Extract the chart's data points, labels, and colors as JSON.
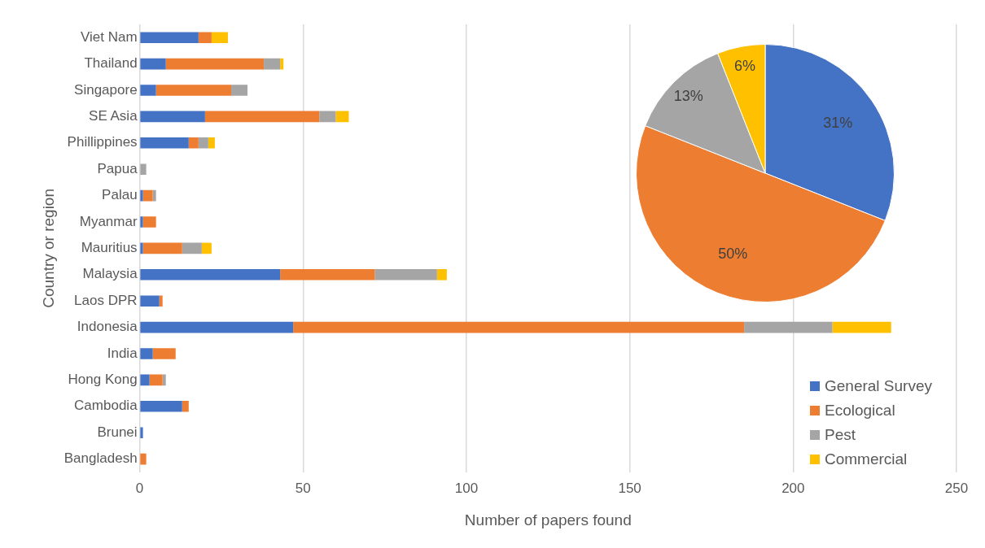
{
  "chart_data": [
    {
      "type": "bar",
      "orientation": "horizontal",
      "stacked": true,
      "xlabel": "Number of papers found",
      "ylabel": "Country or region",
      "categories": [
        "Viet Nam",
        "Thailand",
        "Singapore",
        "SE Asia",
        "Phillippines",
        "Papua",
        "Palau",
        "Myanmar",
        "Mauritius",
        "Malaysia",
        "Laos DPR",
        "Indonesia",
        "India",
        "Hong Kong",
        "Cambodia",
        "Brunei",
        "Bangladesh"
      ],
      "series": [
        {
          "color": "#4472c4",
          "values": [
            18,
            8,
            5,
            20,
            15,
            0,
            1,
            1,
            1,
            43,
            6,
            47,
            4,
            3,
            13,
            1,
            0
          ]
        },
        {
          "color": "#ed7d31",
          "values": [
            4,
            30,
            23,
            35,
            3,
            0,
            3,
            4,
            12,
            29,
            1,
            138,
            7,
            4,
            2,
            0,
            2
          ]
        },
        {
          "color": "#a5a5a5",
          "values": [
            0,
            5,
            5,
            5,
            3,
            2,
            1,
            0,
            6,
            19,
            0,
            27,
            0,
            1,
            0,
            0,
            0
          ]
        },
        {
          "color": "#ffc000",
          "values": [
            5,
            1,
            0,
            4,
            2,
            0,
            0,
            0,
            3,
            3,
            0,
            18,
            0,
            0,
            0,
            0,
            0
          ]
        }
      ],
      "xlim": [
        0,
        250
      ],
      "xticks": [
        0,
        50,
        100,
        150,
        200,
        250
      ],
      "grid": "x"
    },
    {
      "type": "pie",
      "categories": [
        "General Survey",
        "Ecological",
        "Pest",
        "Commercial"
      ],
      "values": [
        31,
        50,
        13,
        6
      ],
      "colors": [
        "#4472c4",
        "#ed7d31",
        "#a5a5a5",
        "#ffc000"
      ],
      "value_labels": [
        "31%",
        "50%",
        "13%",
        "6%"
      ],
      "legend": "bottom"
    }
  ]
}
